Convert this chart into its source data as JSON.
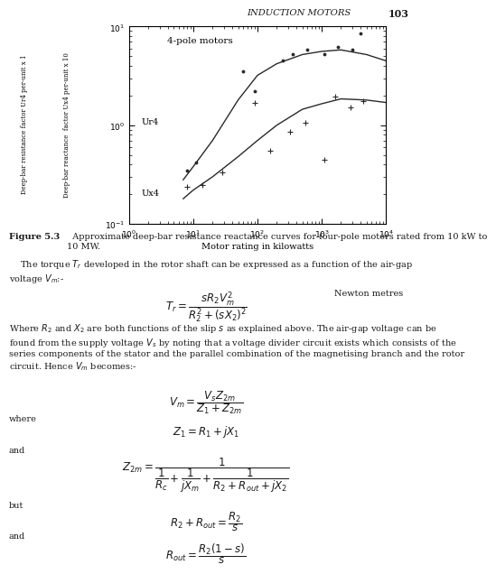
{
  "header_text": "INDUCTION MOTORS",
  "header_number": "103",
  "plot_title": "4-pole motors",
  "xlabel": "Motor rating in kilowatts",
  "ylabel1": "Deep-bar resistance factor Ur4 per-unit x 1",
  "ylabel2": "Deep-bar reactance  factor Ux4 per-unit x 10",
  "upper_curve_x": [
    7,
    10,
    20,
    50,
    100,
    200,
    500,
    1000,
    2000,
    5000,
    10000
  ],
  "upper_curve_y": [
    0.28,
    0.38,
    0.7,
    1.8,
    3.2,
    4.2,
    5.2,
    5.6,
    5.8,
    5.2,
    4.5
  ],
  "upper_scatter_x": [
    8,
    11,
    60,
    90,
    250,
    350,
    600,
    1100,
    1800,
    3000,
    4000
  ],
  "upper_scatter_y": [
    0.35,
    0.42,
    3.5,
    2.2,
    4.5,
    5.2,
    5.8,
    5.2,
    6.2,
    5.8,
    8.5
  ],
  "lower_curve_x": [
    7,
    10,
    20,
    50,
    100,
    200,
    500,
    1000,
    2000,
    5000,
    10000
  ],
  "lower_curve_y": [
    0.18,
    0.22,
    0.3,
    0.48,
    0.7,
    1.0,
    1.45,
    1.65,
    1.85,
    1.8,
    1.7
  ],
  "lower_scatter_x": [
    8,
    14,
    28,
    90,
    160,
    320,
    550,
    1100,
    1600,
    2800,
    4500
  ],
  "lower_scatter_y": [
    0.24,
    0.25,
    0.33,
    1.7,
    0.55,
    0.85,
    1.05,
    0.45,
    1.95,
    1.5,
    1.75
  ],
  "label_ur4": "Ur4",
  "label_ux4": "Ux4",
  "figure_caption_bold": "Figure 5.3",
  "figure_caption_normal": "  Approximate deep-bar resistance reactance curves for four-pole motors rated from 10 kW to\n10 MW.",
  "body_text1": "    The torque ",
  "body_text1b": " developed in the rotor shaft can be expressed as a function of the air-gap\nvoltage ",
  "eq1_display": "$T_r = \\dfrac{sR_2V_m^2}{R_2^2 + (sX_2)^2}$",
  "eq1_label": "Newton metres",
  "body_text2": "Where ",
  "body_text2b": " and ",
  "body_text2c": " are both functions of the slip ",
  "body_text2d": " as explained above. The air-gap voltage can be\nfound from the supply voltage ",
  "body_text2e": " by noting that a voltage divider circuit exists which consists of the\nseries components of the stator and the parallel combination of the magnetising branch and the rotor\ncircuit. Hence ",
  "body_text2f": " becomes:-",
  "eq2_display": "$V_m = \\dfrac{V_s Z_{2m}}{Z_1 + Z_{2m}}$",
  "where_text": "where",
  "eq3_display": "$Z_1 = R_1 + jX_1$",
  "and_text1": "and",
  "eq4_display": "$Z_{2m} = \\dfrac{1}{\\dfrac{1}{R_c} + \\dfrac{1}{jX_m} + \\dfrac{1}{R_2 + R_{out} + jX_2}}$",
  "but_text": "but",
  "eq5_display": "$R_2 + R_{out} = \\dfrac{R_2}{s}$",
  "and_text2": "and",
  "eq6_display": "$R_{out} = \\dfrac{R_2(1-s)}{s}$",
  "background_color": "#ffffff",
  "text_color": "#1a1a1a",
  "curve_color": "#2a2a2a",
  "scatter_color": "#2a2a2a"
}
